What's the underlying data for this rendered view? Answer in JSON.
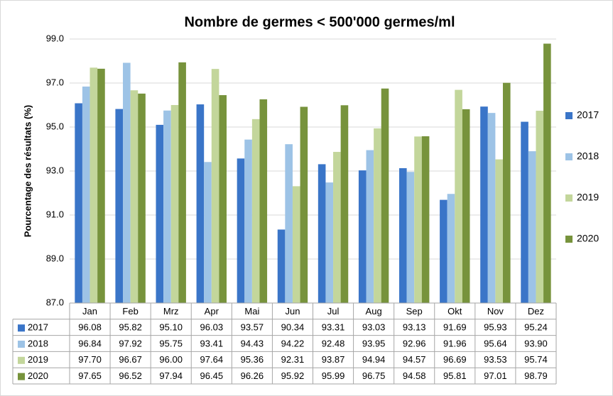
{
  "chart_data": {
    "type": "bar",
    "title": "Nombre de germes < 500'000 germes/ml",
    "y_label": "Pourcentage des résultats (%)",
    "categories": [
      "Jan",
      "Feb",
      "Mrz",
      "Apr",
      "Mai",
      "Jun",
      "Jul",
      "Aug",
      "Sep",
      "Okt",
      "Nov",
      "Dez"
    ],
    "series": [
      {
        "name": "2017",
        "color": "#3a75c8",
        "values": [
          96.08,
          95.82,
          95.1,
          96.03,
          93.57,
          90.34,
          93.31,
          93.03,
          93.13,
          91.69,
          95.93,
          95.24
        ],
        "value_labels": [
          "96.08",
          "95.82",
          "95.10",
          "96.03",
          "93.57",
          "90.34",
          "93.31",
          "93.03",
          "93.13",
          "91.69",
          "95.93",
          "95.24"
        ]
      },
      {
        "name": "2018",
        "color": "#9dc3e6",
        "values": [
          96.84,
          97.92,
          95.75,
          93.41,
          94.43,
          94.22,
          92.48,
          93.95,
          92.96,
          91.96,
          95.64,
          93.9
        ],
        "value_labels": [
          "96.84",
          "97.92",
          "95.75",
          "93.41",
          "94.43",
          "94.22",
          "92.48",
          "93.95",
          "92.96",
          "91.96",
          "95.64",
          "93.90"
        ]
      },
      {
        "name": "2019",
        "color": "#c3d69b",
        "values": [
          97.7,
          96.67,
          96.0,
          97.64,
          95.36,
          92.31,
          93.87,
          94.94,
          94.57,
          96.69,
          93.53,
          95.74
        ],
        "value_labels": [
          "97.70",
          "96.67",
          "96.00",
          "97.64",
          "95.36",
          "92.31",
          "93.87",
          "94.94",
          "94.57",
          "96.69",
          "93.53",
          "95.74"
        ]
      },
      {
        "name": "2020",
        "color": "#77933c",
        "values": [
          97.65,
          96.52,
          97.94,
          96.45,
          96.26,
          95.92,
          95.99,
          96.75,
          94.58,
          95.81,
          97.01,
          98.79
        ],
        "value_labels": [
          "97.65",
          "96.52",
          "97.94",
          "96.45",
          "96.26",
          "95.92",
          "95.99",
          "96.75",
          "94.58",
          "95.81",
          "97.01",
          "98.79"
        ]
      }
    ],
    "ylim": [
      87,
      99
    ],
    "yticks": [
      {
        "value": 87,
        "label": "87.0"
      },
      {
        "value": 89,
        "label": "89.0"
      },
      {
        "value": 91,
        "label": "91.0"
      },
      {
        "value": 93,
        "label": "93.0"
      },
      {
        "value": 95,
        "label": "95.0"
      },
      {
        "value": 97,
        "label": "97.0"
      },
      {
        "value": 99,
        "label": "99.0"
      }
    ],
    "grid": true,
    "legend": "right",
    "data_table": true
  }
}
